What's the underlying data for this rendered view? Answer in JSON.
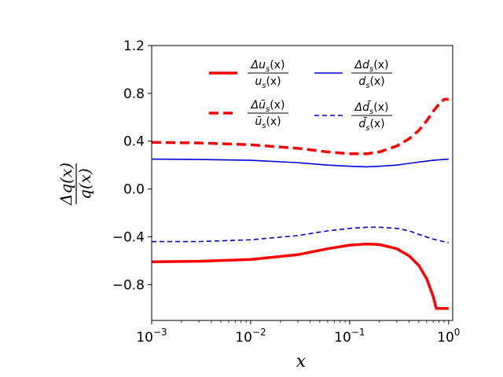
{
  "chart_data": {
    "type": "line",
    "title": "",
    "xlabel": "x",
    "ylabel": "Δq(x) / q(x)",
    "ylabel_num": "Δq(x)",
    "ylabel_den": "q(x)",
    "xscale": "log",
    "xlim": [
      0.001,
      1.1
    ],
    "ylim": [
      -1.1,
      1.2
    ],
    "x_ticks": [
      {
        "value": 0.001,
        "base": "10",
        "exp": "−3"
      },
      {
        "value": 0.01,
        "base": "10",
        "exp": "−2"
      },
      {
        "value": 0.1,
        "base": "10",
        "exp": "−1"
      },
      {
        "value": 1,
        "base": "10",
        "exp": "0"
      }
    ],
    "y_ticks": [
      {
        "value": 1.2,
        "label": "1.2"
      },
      {
        "value": 0.8,
        "label": "0.8"
      },
      {
        "value": 0.4,
        "label": "0.4"
      },
      {
        "value": 0.0,
        "label": "0.0"
      },
      {
        "value": -0.4,
        "label": "−0.4"
      },
      {
        "value": -0.8,
        "label": "−0.8"
      }
    ],
    "legend_position": "top",
    "series": [
      {
        "id": "us",
        "name": "Δu_s(x)/u_s(x)",
        "num_text": "Δu",
        "num_sub": "s",
        "num_tail": "(x)",
        "den_text": "u",
        "den_sub": "s",
        "den_tail": "(x)",
        "color": "#ff0000",
        "style": "solid",
        "weight": "thick",
        "x": [
          0.001,
          0.003,
          0.01,
          0.03,
          0.06,
          0.1,
          0.15,
          0.2,
          0.3,
          0.4,
          0.5,
          0.6,
          0.7,
          0.75,
          0.8,
          0.9,
          1.0
        ],
        "y": [
          -0.61,
          -0.605,
          -0.59,
          -0.55,
          -0.5,
          -0.47,
          -0.46,
          -0.465,
          -0.5,
          -0.56,
          -0.64,
          -0.75,
          -0.9,
          -1.0,
          -1.0,
          -1.0,
          -1.0
        ]
      },
      {
        "id": "ubar",
        "name": "Δū_s(x)/ū_s(x)",
        "num_text": "Δū",
        "num_sub": "s",
        "num_tail": "(x)",
        "den_text": "ū",
        "den_sub": "s",
        "den_tail": "(x)",
        "color": "#ff0000",
        "style": "dashed",
        "weight": "thick",
        "x": [
          0.001,
          0.003,
          0.01,
          0.03,
          0.06,
          0.1,
          0.15,
          0.2,
          0.3,
          0.4,
          0.5,
          0.6,
          0.7,
          0.8,
          0.9,
          1.0
        ],
        "y": [
          0.39,
          0.385,
          0.37,
          0.34,
          0.31,
          0.295,
          0.295,
          0.31,
          0.36,
          0.42,
          0.49,
          0.57,
          0.65,
          0.71,
          0.75,
          0.75
        ]
      },
      {
        "id": "ds",
        "name": "Δd_s(x)/d_s(x)",
        "num_text": "Δd",
        "num_sub": "s",
        "num_tail": "(x)",
        "den_text": "d",
        "den_sub": "s",
        "den_tail": "(x)",
        "color": "#0000dd",
        "style": "solid",
        "weight": "thin",
        "x": [
          0.001,
          0.003,
          0.01,
          0.03,
          0.06,
          0.1,
          0.15,
          0.2,
          0.3,
          0.5,
          0.7,
          1.0
        ],
        "y": [
          0.25,
          0.247,
          0.24,
          0.22,
          0.2,
          0.19,
          0.185,
          0.19,
          0.2,
          0.225,
          0.24,
          0.25
        ]
      },
      {
        "id": "dbar",
        "name": "Δd̄_s(x)/d̄_s(x)",
        "num_text": "Δd̄",
        "num_sub": "s",
        "num_tail": "(x)",
        "den_text": "d̄",
        "den_sub": "s",
        "den_tail": "(x)",
        "color": "#0000dd",
        "style": "dashed",
        "weight": "thin",
        "x": [
          0.001,
          0.003,
          0.01,
          0.03,
          0.06,
          0.1,
          0.15,
          0.2,
          0.3,
          0.4,
          0.5,
          0.7,
          1.0
        ],
        "y": [
          -0.44,
          -0.44,
          -0.425,
          -0.39,
          -0.35,
          -0.33,
          -0.32,
          -0.32,
          -0.33,
          -0.35,
          -0.38,
          -0.42,
          -0.45
        ]
      }
    ]
  }
}
